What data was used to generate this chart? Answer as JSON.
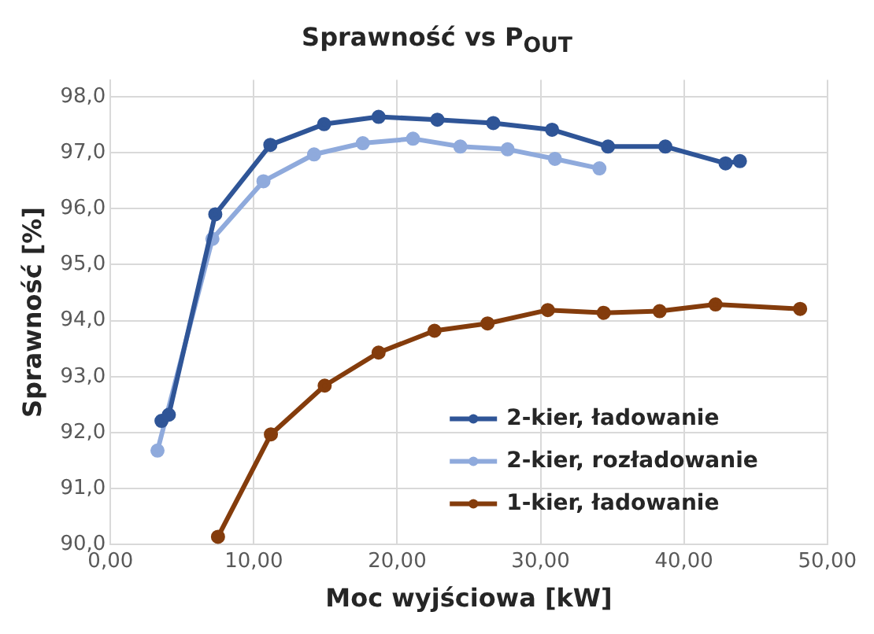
{
  "chart_data": {
    "type": "line",
    "title": "Sprawność vs P$_{OUT}$",
    "xlabel": "Moc wyjściowa [kW]",
    "ylabel": "Sprawność [%]",
    "xlim": [
      0,
      50
    ],
    "xticks": [
      {
        "value": 0,
        "label": "0,00"
      },
      {
        "value": 10,
        "label": "10,00"
      },
      {
        "value": 20,
        "label": "20,00"
      },
      {
        "value": 30,
        "label": "30,00"
      },
      {
        "value": 40,
        "label": "40,00"
      },
      {
        "value": 50,
        "label": "50,00"
      }
    ],
    "ylim": [
      90,
      98.3
    ],
    "yticks": [
      {
        "value": 90,
        "label": "90,0"
      },
      {
        "value": 91,
        "label": "91,0"
      },
      {
        "value": 92,
        "label": "92,0"
      },
      {
        "value": 93,
        "label": "93,0"
      },
      {
        "value": 94,
        "label": "94,0"
      },
      {
        "value": 95,
        "label": "95,0"
      },
      {
        "value": 96,
        "label": "96,0"
      },
      {
        "value": 97,
        "label": "97,0"
      },
      {
        "value": 98,
        "label": "98,0"
      }
    ],
    "grid": true,
    "legend": "bottom right",
    "marker": "circle",
    "line_style": "solid",
    "series": [
      {
        "name": "2-kier, ładowanie",
        "color": "#2f5597",
        "x": [
          3.56,
          4.07,
          7.31,
          11.15,
          14.9,
          18.7,
          22.8,
          26.7,
          30.8,
          34.7,
          38.7,
          42.9,
          43.9
        ],
        "values": [
          92.21,
          92.32,
          95.9,
          97.14,
          97.51,
          97.64,
          97.59,
          97.53,
          97.41,
          97.11,
          97.11,
          96.81,
          96.85
        ]
      },
      {
        "name": "2-kier, rozładowanie",
        "color": "#8faadc",
        "x": [
          3.28,
          7.11,
          10.67,
          14.2,
          17.6,
          21.1,
          24.4,
          27.7,
          31.0,
          34.1
        ],
        "values": [
          91.68,
          95.46,
          96.49,
          96.97,
          97.17,
          97.25,
          97.11,
          97.06,
          96.89,
          96.72
        ]
      },
      {
        "name": "1-kier, ładowanie",
        "color": "#843c0c",
        "x": [
          7.5,
          11.19,
          14.94,
          18.7,
          22.6,
          26.3,
          30.5,
          34.4,
          38.3,
          42.2,
          48.1
        ],
        "values": [
          90.14,
          91.97,
          92.84,
          93.43,
          93.82,
          93.95,
          94.19,
          94.14,
          94.17,
          94.29,
          94.21
        ]
      }
    ]
  }
}
